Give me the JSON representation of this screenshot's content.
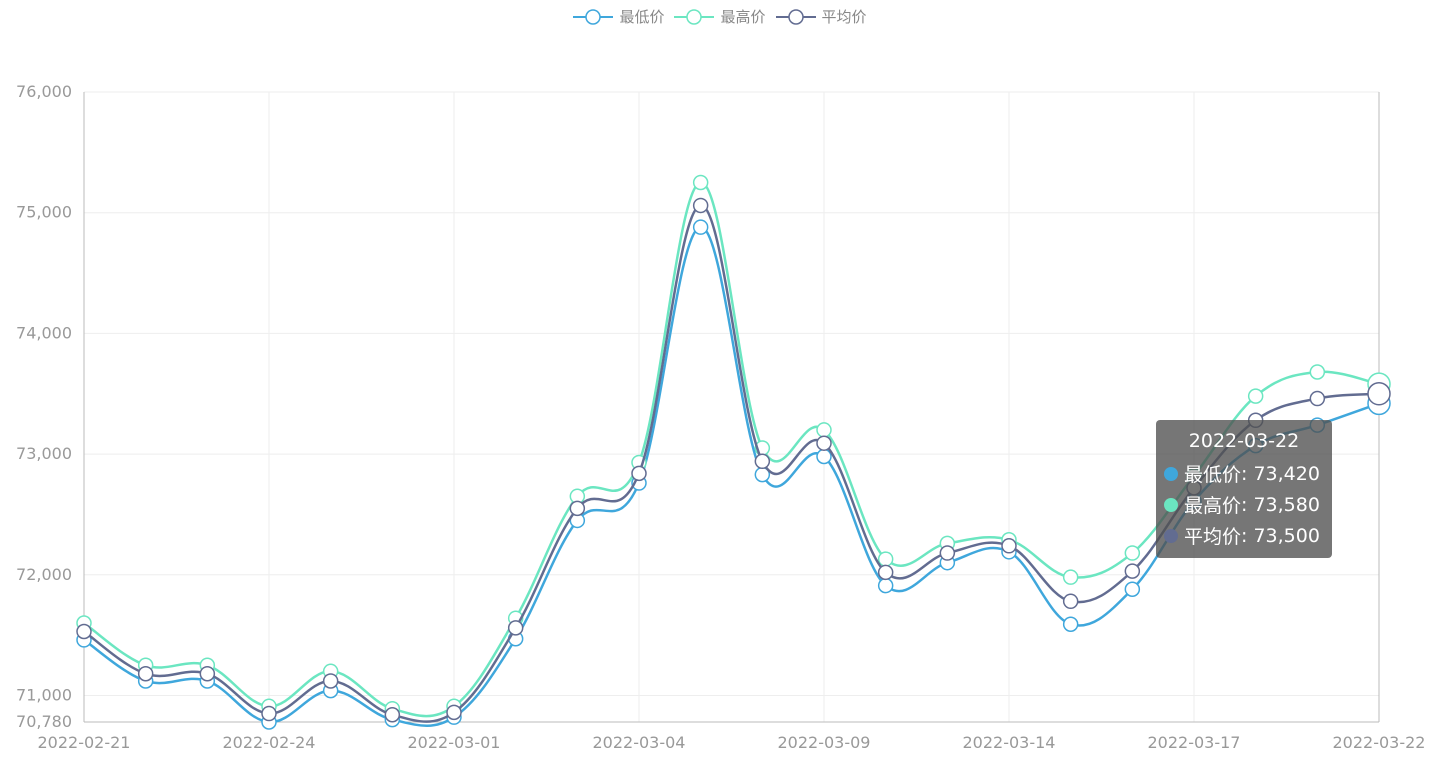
{
  "colors": {
    "low": "#3fa7dc",
    "high": "#6be6c1",
    "avg": "#626c91",
    "grid": "#eeeeee",
    "axis": "#bbbbbb",
    "label": "#999999"
  },
  "legend": [
    {
      "name": "最低价",
      "color": "#3fa7dc"
    },
    {
      "name": "最高价",
      "color": "#6be6c1"
    },
    {
      "name": "平均价",
      "color": "#626c91"
    }
  ],
  "chart_data": {
    "type": "line",
    "x": [
      "2022-02-21",
      "2022-02-22",
      "2022-02-23",
      "2022-02-24",
      "2022-02-25",
      "2022-02-28",
      "2022-03-01",
      "2022-03-02",
      "2022-03-03",
      "2022-03-04",
      "2022-03-07",
      "2022-03-08",
      "2022-03-09",
      "2022-03-10",
      "2022-03-11",
      "2022-03-14",
      "2022-03-15",
      "2022-03-16",
      "2022-03-17",
      "2022-03-18",
      "2022-03-21",
      "2022-03-22"
    ],
    "x_tick_labels": [
      "2022-02-21",
      "2022-02-24",
      "2022-03-01",
      "2022-03-04",
      "2022-03-09",
      "2022-03-14",
      "2022-03-17",
      "2022-03-22"
    ],
    "ylim": [
      70780,
      76000
    ],
    "y_ticks": [
      70780,
      71000,
      72000,
      73000,
      74000,
      75000,
      76000
    ],
    "y_tick_labels": [
      "70,780",
      "71,000",
      "72,000",
      "73,000",
      "74,000",
      "75,000",
      "76,000"
    ],
    "series": [
      {
        "name": "最低价",
        "key": "low",
        "values": [
          71460,
          71120,
          71120,
          70780,
          71040,
          70800,
          70820,
          71470,
          72450,
          72760,
          74880,
          72830,
          72980,
          71910,
          72100,
          72190,
          71590,
          71880,
          72610,
          73070,
          73240,
          73420
        ]
      },
      {
        "name": "最高价",
        "key": "high",
        "values": [
          71600,
          71250,
          71250,
          70910,
          71200,
          70890,
          70910,
          71640,
          72650,
          72930,
          75250,
          73050,
          73200,
          72130,
          72260,
          72290,
          71980,
          72180,
          72820,
          73480,
          73680,
          73580
        ]
      },
      {
        "name": "平均价",
        "key": "avg",
        "values": [
          71530,
          71180,
          71180,
          70850,
          71120,
          70840,
          70860,
          71560,
          72550,
          72840,
          75060,
          72940,
          73090,
          72020,
          72180,
          72240,
          71780,
          72030,
          72720,
          73280,
          73460,
          73500
        ]
      }
    ]
  },
  "tooltip": {
    "title": "2022-03-22",
    "rows": [
      {
        "name": "最低价",
        "value": "73,420",
        "color": "#3fa7dc"
      },
      {
        "name": "最高价",
        "value": "73,580",
        "color": "#6be6c1"
      },
      {
        "name": "平均价",
        "value": "73,500",
        "color": "#626c91"
      }
    ]
  }
}
